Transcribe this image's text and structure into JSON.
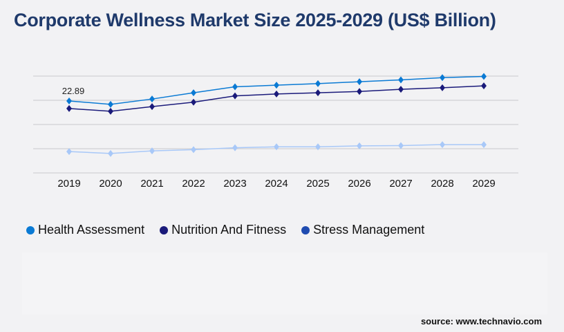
{
  "title": "Corporate Wellness Market Size 2025-2029 (US$ Billion)",
  "source": "source: www.technavio.com",
  "chart_data": {
    "type": "line",
    "title": "Corporate Wellness Market Size 2025-2029 (US$ Billion)",
    "xlabel": "",
    "ylabel": "",
    "categories": [
      "2019",
      "2020",
      "2021",
      "2022",
      "2023",
      "2024",
      "2025",
      "2026",
      "2027",
      "2028",
      "2029"
    ],
    "ylim": [
      0,
      30.8
    ],
    "grid": true,
    "legend_position": "bottom-left",
    "annotations": [
      {
        "series": "Health Assessment",
        "category": "2019",
        "text": "22.89"
      }
    ],
    "series": [
      {
        "name": "Health Assessment",
        "color": "#0a7ad4",
        "legend_color": "#0a7ad4",
        "values": [
          22.89,
          21.8,
          23.5,
          25.5,
          27.4,
          27.9,
          28.4,
          29.0,
          29.6,
          30.3,
          30.7
        ]
      },
      {
        "name": "Nutrition And Fitness",
        "color": "#1a1a7a",
        "legend_color": "#1a1a7a",
        "values": [
          20.5,
          19.6,
          21.1,
          22.5,
          24.5,
          25.1,
          25.5,
          25.9,
          26.6,
          27.1,
          27.7
        ]
      },
      {
        "name": "Stress Management",
        "color": "#a8c8f8",
        "legend_color": "#1f4bb0",
        "values": [
          6.8,
          6.2,
          7.0,
          7.4,
          8.0,
          8.3,
          8.3,
          8.6,
          8.7,
          9.0,
          9.0
        ]
      }
    ]
  }
}
